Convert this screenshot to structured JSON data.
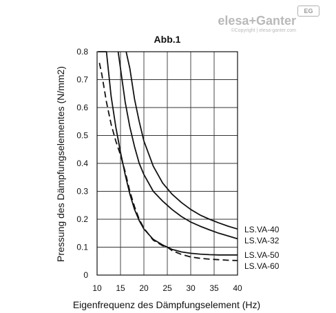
{
  "logo": {
    "brand": "elesa+Ganter",
    "badge": "EG",
    "copyright": "©Copyright | elesa-ganter.com"
  },
  "chart_data": {
    "type": "line",
    "title": "Abb.1",
    "xlabel": "Eigenfrequenz des Dämpfungselement (Hz)",
    "ylabel": "Pressung des Dämpfungselementes (N/mm2)",
    "xlim": [
      10,
      40
    ],
    "ylim": [
      0,
      0.8
    ],
    "xticks": [
      "10",
      "15",
      "20",
      "25",
      "30",
      "35",
      "40"
    ],
    "yticks": [
      "0",
      "0.1",
      "0.2",
      "0.3",
      "0.4",
      "0.5",
      "0.6",
      "0.7",
      "0.8"
    ],
    "grid": true,
    "series": [
      {
        "name": "LS.VA-40",
        "style": "solid",
        "x": [
          16.2,
          17,
          18,
          19,
          20,
          22,
          24,
          26,
          28,
          30,
          32,
          34,
          36,
          38,
          40
        ],
        "y": [
          0.8,
          0.74,
          0.63,
          0.55,
          0.48,
          0.39,
          0.33,
          0.29,
          0.26,
          0.235,
          0.215,
          0.2,
          0.187,
          0.175,
          0.165
        ]
      },
      {
        "name": "LS.VA-32",
        "style": "solid",
        "x": [
          14.5,
          15,
          16,
          17,
          18,
          19,
          20,
          22,
          24,
          26,
          28,
          30,
          32,
          34,
          36,
          38,
          40
        ],
        "y": [
          0.8,
          0.74,
          0.62,
          0.53,
          0.46,
          0.4,
          0.36,
          0.3,
          0.265,
          0.235,
          0.21,
          0.19,
          0.175,
          0.162,
          0.15,
          0.14,
          0.13
        ]
      },
      {
        "name": "LS.VA-50",
        "style": "solid",
        "x": [
          10.2,
          11,
          12,
          13,
          14,
          15,
          16,
          17,
          18,
          19,
          20,
          22,
          24,
          25,
          26,
          28,
          30,
          32,
          34,
          36,
          38,
          40
        ],
        "y": [
          0.8,
          0.8,
          0.8,
          0.64,
          0.53,
          0.44,
          0.36,
          0.29,
          0.235,
          0.195,
          0.165,
          0.128,
          0.108,
          0.1,
          0.092,
          0.083,
          0.078,
          0.075,
          0.073,
          0.072,
          0.072,
          0.072
        ]
      },
      {
        "name": "LS.VA-60",
        "style": "dashed",
        "x": [
          10.5,
          11,
          12,
          13,
          14,
          15,
          16,
          17,
          18,
          19,
          20,
          22,
          24,
          25,
          26,
          28,
          30,
          32,
          34,
          36,
          38,
          40
        ],
        "y": [
          0.76,
          0.72,
          0.62,
          0.54,
          0.48,
          0.43,
          0.37,
          0.3,
          0.245,
          0.2,
          0.168,
          0.125,
          0.105,
          0.1,
          0.088,
          0.074,
          0.065,
          0.06,
          0.057,
          0.055,
          0.053,
          0.052
        ]
      }
    ]
  }
}
